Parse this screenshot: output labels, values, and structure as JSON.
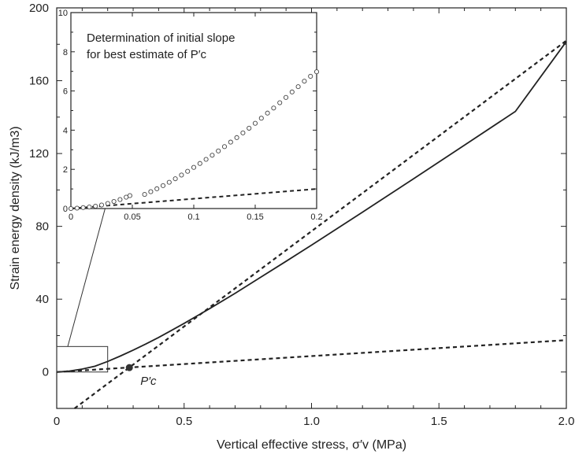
{
  "chart_data": [
    {
      "type": "line",
      "xlabel": "Vertical effective stress, σ′v (MPa)",
      "ylabel": "Strain energy density (kJ/m3)",
      "xlim": [
        0,
        2.0
      ],
      "ylim": [
        -20,
        200
      ],
      "x_ticks": [
        "0",
        "0.5",
        "1.0",
        "1.5",
        "2.0"
      ],
      "y_ticks": [
        "0",
        "40",
        "80",
        "120",
        "160",
        "200"
      ],
      "series": [
        {
          "style": "solid",
          "x": [
            0,
            0.05,
            0.1,
            0.15,
            0.2,
            0.25,
            0.3,
            0.35,
            0.4,
            0.45,
            0.5,
            0.6,
            0.7,
            0.8,
            0.9,
            1.0,
            1.2,
            1.4,
            1.6,
            1.8,
            2.0
          ],
          "y": [
            0,
            0.5,
            1.6,
            3.2,
            5.8,
            8.8,
            12.0,
            15.4,
            19.0,
            22.8,
            26.7,
            34.8,
            43.2,
            52.0,
            60.8,
            69.7,
            87.8,
            106.1,
            124.6,
            143.1,
            181.5
          ]
        },
        {
          "style": "dashed",
          "x": [
            0.07,
            2.0
          ],
          "y": [
            -20,
            182
          ]
        },
        {
          "style": "dashed",
          "x": [
            0,
            2.0
          ],
          "y": [
            0,
            17.5
          ]
        }
      ],
      "annotations": [
        {
          "text": "P′c",
          "x": 0.285,
          "y": 2.4
        }
      ],
      "grid": false
    },
    {
      "type": "scatter",
      "title": "Determination of initial slope for best estimate of P′c",
      "xlim": [
        0,
        0.2
      ],
      "ylim": [
        0,
        10
      ],
      "x_ticks": [
        "0",
        "0.05",
        "0.1",
        "0.15",
        "0.2"
      ],
      "y_ticks": [
        "0",
        "2",
        "4",
        "6",
        "8",
        "10"
      ],
      "points": {
        "x": [
          0.0,
          0.005,
          0.01,
          0.015,
          0.02,
          0.025,
          0.03,
          0.035,
          0.04,
          0.045,
          0.048,
          0.06,
          0.065,
          0.07,
          0.075,
          0.08,
          0.085,
          0.09,
          0.095,
          0.1,
          0.105,
          0.11,
          0.115,
          0.12,
          0.125,
          0.13,
          0.135,
          0.14,
          0.145,
          0.15,
          0.155,
          0.16,
          0.165,
          0.17,
          0.175,
          0.18,
          0.185,
          0.19,
          0.195,
          0.2
        ],
        "y": [
          0.0,
          0.02,
          0.05,
          0.08,
          0.12,
          0.18,
          0.26,
          0.36,
          0.46,
          0.58,
          0.66,
          0.72,
          0.86,
          1.01,
          1.17,
          1.34,
          1.52,
          1.71,
          1.9,
          2.1,
          2.3,
          2.51,
          2.72,
          2.94,
          3.16,
          3.39,
          3.62,
          3.86,
          4.1,
          4.35,
          4.61,
          4.87,
          5.13,
          5.4,
          5.67,
          5.95,
          6.22,
          6.5,
          6.75,
          6.98
        ]
      },
      "dashed_line": {
        "x": [
          0,
          0.2
        ],
        "y": [
          0,
          1.0
        ]
      }
    }
  ]
}
